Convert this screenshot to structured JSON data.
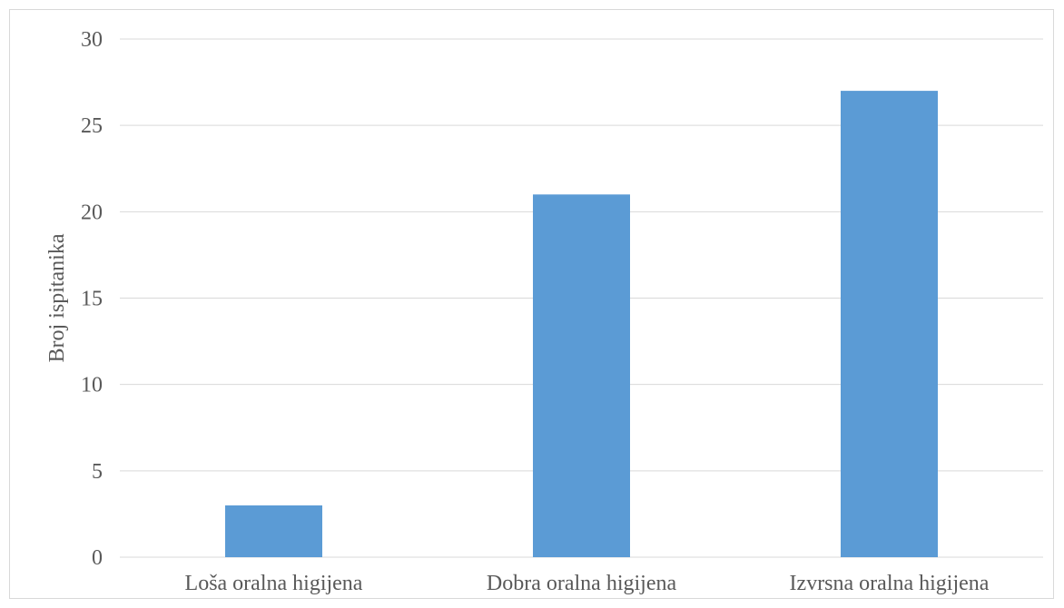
{
  "chart_data": {
    "type": "bar",
    "title": "",
    "xlabel": "",
    "ylabel": "Broj ispitanika",
    "categories": [
      "Loša oralna higijena",
      "Dobra oralna higijena",
      "Izvrsna oralna higijena"
    ],
    "values": [
      3,
      21,
      27
    ],
    "ylim": [
      0,
      30
    ],
    "yticks": [
      0,
      5,
      10,
      15,
      20,
      25,
      30
    ],
    "grid": true,
    "legend": "none",
    "bar_color": "#5b9bd5",
    "grid_color": "#d9d9d9",
    "text_color": "#595959"
  }
}
